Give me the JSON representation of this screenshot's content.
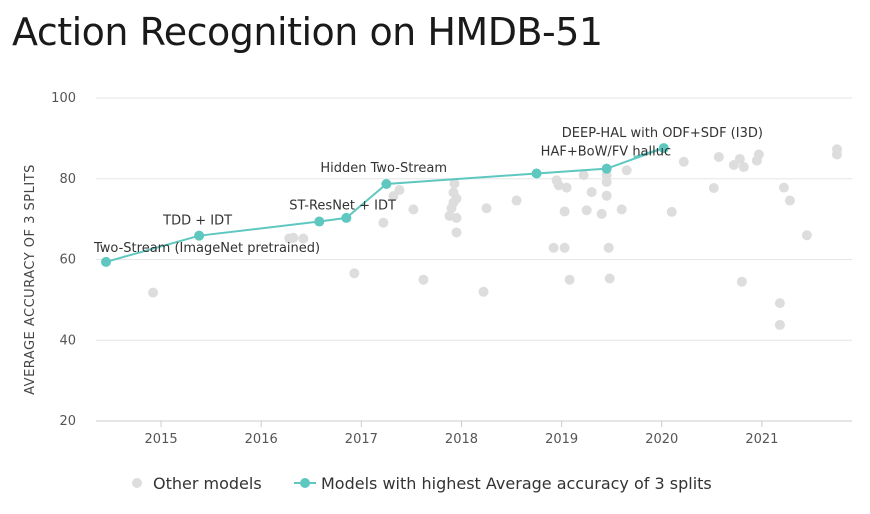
{
  "chart_data": {
    "type": "scatter",
    "title": "Action Recognition on HMDB-51",
    "ylabel": "AVERAGE ACCURACY OF 3 SPLITS",
    "xlabel": "",
    "xlim": [
      2014.35,
      2021.9
    ],
    "ylim": [
      20,
      100
    ],
    "x_ticks": [
      "2015",
      "2016",
      "2017",
      "2018",
      "2019",
      "2020",
      "2021"
    ],
    "y_ticks": [
      "20",
      "40",
      "60",
      "80",
      "100"
    ],
    "grid": "horizontal",
    "legend_position": "bottom",
    "colors": {
      "other": "#dddddd",
      "sota": "#5ec8c0"
    },
    "series": [
      {
        "name": "Other models",
        "points": [
          [
            2014.92,
            51.8
          ],
          [
            2016.28,
            65.2
          ],
          [
            2016.32,
            65.4
          ],
          [
            2016.42,
            65.2
          ],
          [
            2016.93,
            56.6
          ],
          [
            2017.22,
            69.1
          ],
          [
            2017.32,
            75.7
          ],
          [
            2017.38,
            77.2
          ],
          [
            2017.52,
            72.4
          ],
          [
            2017.62,
            55.0
          ],
          [
            2017.88,
            70.8
          ],
          [
            2017.9,
            72.7
          ],
          [
            2017.92,
            74.1
          ],
          [
            2017.92,
            76.6
          ],
          [
            2017.93,
            78.8
          ],
          [
            2017.95,
            75.1
          ],
          [
            2017.95,
            66.7
          ],
          [
            2017.95,
            70.3
          ],
          [
            2018.22,
            52.0
          ],
          [
            2018.25,
            72.7
          ],
          [
            2018.55,
            74.6
          ],
          [
            2018.92,
            62.9
          ],
          [
            2018.95,
            79.6
          ],
          [
            2018.97,
            78.4
          ],
          [
            2019.03,
            62.9
          ],
          [
            2019.03,
            71.9
          ],
          [
            2019.05,
            77.8
          ],
          [
            2019.08,
            55.0
          ],
          [
            2019.22,
            80.9
          ],
          [
            2019.25,
            72.2
          ],
          [
            2019.3,
            76.7
          ],
          [
            2019.4,
            71.3
          ],
          [
            2019.45,
            80.9
          ],
          [
            2019.45,
            79.2
          ],
          [
            2019.45,
            75.8
          ],
          [
            2019.47,
            62.9
          ],
          [
            2019.48,
            55.3
          ],
          [
            2019.6,
            72.4
          ],
          [
            2019.65,
            82.1
          ],
          [
            2020.1,
            71.8
          ],
          [
            2020.22,
            84.2
          ],
          [
            2020.52,
            77.7
          ],
          [
            2020.57,
            85.4
          ],
          [
            2020.72,
            83.4
          ],
          [
            2020.78,
            84.9
          ],
          [
            2020.8,
            54.5
          ],
          [
            2020.82,
            82.9
          ],
          [
            2020.95,
            84.5
          ],
          [
            2020.97,
            86.0
          ],
          [
            2021.18,
            49.2
          ],
          [
            2021.18,
            43.8
          ],
          [
            2021.22,
            77.8
          ],
          [
            2021.28,
            74.6
          ],
          [
            2021.45,
            66.0
          ],
          [
            2021.75,
            87.3
          ],
          [
            2021.75,
            86.0
          ]
        ]
      },
      {
        "name": "Models with highest Average accuracy of 3 splits",
        "points": [
          {
            "x": 2014.45,
            "y": 59.4,
            "label": "Two-Stream (ImageNet pretrained)"
          },
          {
            "x": 2015.38,
            "y": 65.9,
            "label": "TDD + IDT"
          },
          {
            "x": 2016.58,
            "y": 69.4,
            "label": "ST-ResNet + IDT"
          },
          {
            "x": 2016.85,
            "y": 70.3,
            "label": ""
          },
          {
            "x": 2017.25,
            "y": 78.7,
            "label": "Hidden Two-Stream"
          },
          {
            "x": 2018.75,
            "y": 81.3,
            "label": ""
          },
          {
            "x": 2019.45,
            "y": 82.5,
            "label": "HAF+BoW/FV halluc"
          },
          {
            "x": 2020.02,
            "y": 87.6,
            "label": "DEEP-HAL with ODF+SDF (I3D)"
          }
        ]
      }
    ]
  }
}
